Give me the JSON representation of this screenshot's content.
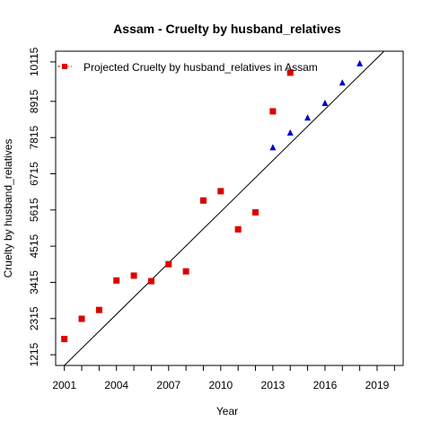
{
  "chart_data": {
    "type": "scatter",
    "title": "Assam  -  Cruelty by husband_relatives",
    "xlabel": "Year",
    "ylabel": "Cruelty by husband_relatives",
    "xlim": [
      2000.5,
      2020.5
    ],
    "ylim": [
      890,
      10440
    ],
    "x_ticks": [
      2001,
      2004,
      2007,
      2010,
      2013,
      2016,
      2019
    ],
    "x_minor_ticks": [
      2001,
      2002,
      2003,
      2004,
      2005,
      2006,
      2007,
      2008,
      2009,
      2010,
      2011,
      2012,
      2013,
      2014,
      2015,
      2016,
      2017,
      2018,
      2019,
      2020
    ],
    "y_ticks": [
      1215,
      2315,
      3415,
      4515,
      5615,
      6715,
      7815,
      8915,
      10115
    ],
    "legend": {
      "position": "top-left",
      "label": "Projected  Cruelty by husband_relatives  in  Assam",
      "color": "#dd0000"
    },
    "series": [
      {
        "name": "Projected  Cruelty by husband_relatives  in  Assam",
        "marker": "square",
        "color": "#dd0000",
        "x": [
          2001,
          2002,
          2003,
          2004,
          2005,
          2006,
          2007,
          2008,
          2009,
          2010,
          2011,
          2012,
          2013,
          2014
        ],
        "y": [
          1694,
          2308,
          2576,
          3472,
          3620,
          3452,
          3968,
          3749,
          5902,
          6186,
          5024,
          5541,
          8612,
          9787
        ]
      },
      {
        "marker": "triangle",
        "color": "#0000cc",
        "x": [
          2013,
          2014,
          2015,
          2016,
          2017,
          2018
        ],
        "y": [
          7510,
          7957,
          8415,
          8858,
          9478,
          10063
        ]
      }
    ],
    "trend_line": {
      "x": [
        2001,
        2019.4
      ],
      "y": [
        890,
        10440
      ],
      "color": "#000000"
    }
  }
}
